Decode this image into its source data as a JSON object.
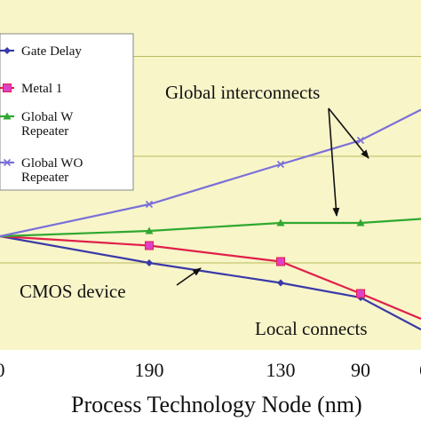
{
  "colors": {
    "plot_bg": "#f8f5c9",
    "gridline": "#b9bb5a",
    "legend_bg": "#ffffff"
  },
  "chart_data": {
    "type": "line",
    "xlabel": "Process Technology Node (nm)",
    "x_ticks": [
      "0",
      "190",
      "130",
      "90",
      "6"
    ],
    "grid": true,
    "legend_position": "top-left",
    "series": [
      {
        "name": "Gate Delay",
        "color": "#3a3aa8",
        "marker": "diamond",
        "points": [
          [
            0,
            0.0
          ],
          [
            190,
            -0.2
          ],
          [
            130,
            -0.35
          ],
          [
            90,
            -0.46
          ]
        ]
      },
      {
        "name": "Metal 1",
        "color": "#e0204a",
        "marker": "square",
        "points": [
          [
            0,
            0.0
          ],
          [
            190,
            -0.07
          ],
          [
            130,
            -0.19
          ],
          [
            90,
            -0.43
          ]
        ]
      },
      {
        "name": "Global W\nRepeater",
        "color": "#2fa82f",
        "marker": "triangle",
        "points": [
          [
            0,
            0.0
          ],
          [
            190,
            0.04
          ],
          [
            130,
            0.1
          ],
          [
            90,
            0.1
          ]
        ]
      },
      {
        "name": "Global WO\nRepeater",
        "color": "#7a70d8",
        "marker": "x",
        "points": [
          [
            0,
            0.0
          ],
          [
            190,
            0.24
          ],
          [
            130,
            0.54
          ],
          [
            90,
            0.72
          ]
        ]
      }
    ],
    "annotations": [
      "Global interconnects",
      "CMOS device",
      "Local connects"
    ]
  }
}
